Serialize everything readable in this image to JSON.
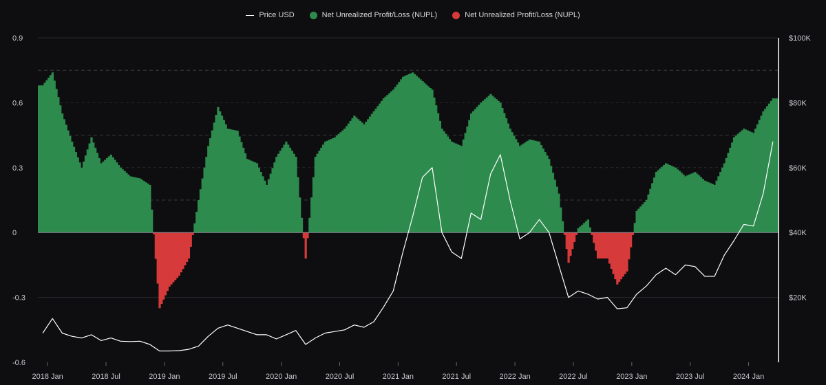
{
  "legend": {
    "price_label": "Price USD",
    "nupl_pos_label": "Net Unrealized Profit/Loss (NUPL)",
    "nupl_neg_label": "Net Unrealized Profit/Loss (NUPL)"
  },
  "colors": {
    "background": "#0e0e10",
    "nupl_positive": "#2e8b4e",
    "nupl_negative": "#d63a3a",
    "price_line": "#ffffff",
    "grid": "#2a2a2e"
  },
  "chart_data": {
    "type": "bar",
    "title": "",
    "x_tick_labels": [
      "2018 Jan",
      "2018 Jul",
      "2019 Jan",
      "2019 Jul",
      "2020 Jan",
      "2020 Jul",
      "2021 Jan",
      "2021 Jul",
      "2022 Jan",
      "2022 Jul",
      "2023 Jan",
      "2023 Jul",
      "2024 Jan"
    ],
    "x_range": [
      "2017-12",
      "2024-03"
    ],
    "y_left": {
      "label": "",
      "ylim": [
        -0.6,
        0.9
      ],
      "ticks": [
        0.9,
        0.6,
        0.3,
        0,
        -0.3,
        -0.6
      ],
      "tick_labels": [
        "0.9",
        "0.6",
        "0.3",
        "0",
        "-0.3",
        "-0.6"
      ]
    },
    "y_right": {
      "label": "",
      "ylim": [
        0,
        100000
      ],
      "ticks": [
        100000,
        80000,
        60000,
        40000,
        20000
      ],
      "tick_labels": [
        "$100K",
        "$80K",
        "$60K",
        "$40K",
        "$20K"
      ]
    },
    "grid": "horizontal dashed at right-axis ticks",
    "legend_position": "top-center",
    "series": [
      {
        "name": "Net Unrealized Profit/Loss (NUPL)",
        "axis": "left",
        "kind": "bars",
        "points": [
          [
            "2017-12",
            0.68
          ],
          [
            "2018-01",
            0.74
          ],
          [
            "2018-02",
            0.55
          ],
          [
            "2018-03",
            0.42
          ],
          [
            "2018-04",
            0.3
          ],
          [
            "2018-05",
            0.44
          ],
          [
            "2018-06",
            0.32
          ],
          [
            "2018-07",
            0.36
          ],
          [
            "2018-08",
            0.3
          ],
          [
            "2018-09",
            0.26
          ],
          [
            "2018-10",
            0.25
          ],
          [
            "2018-11",
            0.22
          ],
          [
            "2018-12",
            -0.35
          ],
          [
            "2019-01",
            -0.25
          ],
          [
            "2019-02",
            -0.2
          ],
          [
            "2019-03",
            -0.12
          ],
          [
            "2019-04",
            0.15
          ],
          [
            "2019-05",
            0.4
          ],
          [
            "2019-06",
            0.58
          ],
          [
            "2019-07",
            0.48
          ],
          [
            "2019-08",
            0.47
          ],
          [
            "2019-09",
            0.34
          ],
          [
            "2019-10",
            0.32
          ],
          [
            "2019-11",
            0.22
          ],
          [
            "2019-12",
            0.35
          ],
          [
            "2020-01",
            0.42
          ],
          [
            "2020-02",
            0.35
          ],
          [
            "2020-03",
            -0.12
          ],
          [
            "2020-04",
            0.35
          ],
          [
            "2020-05",
            0.42
          ],
          [
            "2020-06",
            0.44
          ],
          [
            "2020-07",
            0.48
          ],
          [
            "2020-08",
            0.54
          ],
          [
            "2020-09",
            0.5
          ],
          [
            "2020-10",
            0.56
          ],
          [
            "2020-11",
            0.62
          ],
          [
            "2020-12",
            0.66
          ],
          [
            "2021-01",
            0.72
          ],
          [
            "2021-02",
            0.74
          ],
          [
            "2021-03",
            0.7
          ],
          [
            "2021-04",
            0.66
          ],
          [
            "2021-05",
            0.48
          ],
          [
            "2021-06",
            0.42
          ],
          [
            "2021-07",
            0.4
          ],
          [
            "2021-08",
            0.55
          ],
          [
            "2021-09",
            0.6
          ],
          [
            "2021-10",
            0.64
          ],
          [
            "2021-11",
            0.6
          ],
          [
            "2021-12",
            0.48
          ],
          [
            "2022-01",
            0.4
          ],
          [
            "2022-02",
            0.43
          ],
          [
            "2022-03",
            0.42
          ],
          [
            "2022-04",
            0.34
          ],
          [
            "2022-05",
            0.18
          ],
          [
            "2022-06",
            -0.14
          ],
          [
            "2022-07",
            0.02
          ],
          [
            "2022-08",
            0.06
          ],
          [
            "2022-09",
            -0.12
          ],
          [
            "2022-10",
            -0.12
          ],
          [
            "2022-11",
            -0.24
          ],
          [
            "2022-12",
            -0.18
          ],
          [
            "2023-01",
            0.1
          ],
          [
            "2023-02",
            0.15
          ],
          [
            "2023-03",
            0.28
          ],
          [
            "2023-04",
            0.32
          ],
          [
            "2023-05",
            0.3
          ],
          [
            "2023-06",
            0.26
          ],
          [
            "2023-07",
            0.28
          ],
          [
            "2023-08",
            0.24
          ],
          [
            "2023-09",
            0.22
          ],
          [
            "2023-10",
            0.32
          ],
          [
            "2023-11",
            0.44
          ],
          [
            "2023-12",
            0.48
          ],
          [
            "2024-01",
            0.46
          ],
          [
            "2024-02",
            0.56
          ],
          [
            "2024-03",
            0.62
          ]
        ]
      },
      {
        "name": "Price USD",
        "axis": "right",
        "kind": "line",
        "points": [
          [
            "2017-12",
            9000
          ],
          [
            "2018-01",
            13500
          ],
          [
            "2018-02",
            9000
          ],
          [
            "2018-03",
            8000
          ],
          [
            "2018-04",
            7500
          ],
          [
            "2018-05",
            8500
          ],
          [
            "2018-06",
            6700
          ],
          [
            "2018-07",
            7500
          ],
          [
            "2018-08",
            6500
          ],
          [
            "2018-09",
            6400
          ],
          [
            "2018-10",
            6500
          ],
          [
            "2018-11",
            5500
          ],
          [
            "2018-12",
            3500
          ],
          [
            "2019-01",
            3500
          ],
          [
            "2019-02",
            3600
          ],
          [
            "2019-03",
            4000
          ],
          [
            "2019-04",
            5000
          ],
          [
            "2019-05",
            8000
          ],
          [
            "2019-06",
            10500
          ],
          [
            "2019-07",
            11500
          ],
          [
            "2019-08",
            10500
          ],
          [
            "2019-09",
            9500
          ],
          [
            "2019-10",
            8500
          ],
          [
            "2019-11",
            8500
          ],
          [
            "2019-12",
            7200
          ],
          [
            "2020-01",
            8500
          ],
          [
            "2020-02",
            9800
          ],
          [
            "2020-03",
            5500
          ],
          [
            "2020-04",
            7500
          ],
          [
            "2020-05",
            9000
          ],
          [
            "2020-06",
            9500
          ],
          [
            "2020-07",
            10000
          ],
          [
            "2020-08",
            11500
          ],
          [
            "2020-09",
            10800
          ],
          [
            "2020-10",
            12500
          ],
          [
            "2020-11",
            17000
          ],
          [
            "2020-12",
            22000
          ],
          [
            "2021-01",
            34000
          ],
          [
            "2021-02",
            45000
          ],
          [
            "2021-03",
            57000
          ],
          [
            "2021-04",
            60000
          ],
          [
            "2021-05",
            40000
          ],
          [
            "2021-06",
            34000
          ],
          [
            "2021-07",
            32000
          ],
          [
            "2021-08",
            46000
          ],
          [
            "2021-09",
            44000
          ],
          [
            "2021-10",
            58000
          ],
          [
            "2021-11",
            64000
          ],
          [
            "2021-12",
            50000
          ],
          [
            "2022-01",
            38000
          ],
          [
            "2022-02",
            40000
          ],
          [
            "2022-03",
            44000
          ],
          [
            "2022-04",
            40000
          ],
          [
            "2022-05",
            30000
          ],
          [
            "2022-06",
            20000
          ],
          [
            "2022-07",
            22000
          ],
          [
            "2022-08",
            21000
          ],
          [
            "2022-09",
            19500
          ],
          [
            "2022-10",
            20000
          ],
          [
            "2022-11",
            16500
          ],
          [
            "2022-12",
            16800
          ],
          [
            "2023-01",
            21000
          ],
          [
            "2023-02",
            23500
          ],
          [
            "2023-03",
            27000
          ],
          [
            "2023-04",
            29000
          ],
          [
            "2023-05",
            27000
          ],
          [
            "2023-06",
            30000
          ],
          [
            "2023-07",
            29500
          ],
          [
            "2023-08",
            26500
          ],
          [
            "2023-09",
            26500
          ],
          [
            "2023-10",
            33000
          ],
          [
            "2023-11",
            37500
          ],
          [
            "2023-12",
            42500
          ],
          [
            "2024-01",
            42000
          ],
          [
            "2024-02",
            52000
          ],
          [
            "2024-03",
            68000
          ]
        ]
      }
    ]
  }
}
